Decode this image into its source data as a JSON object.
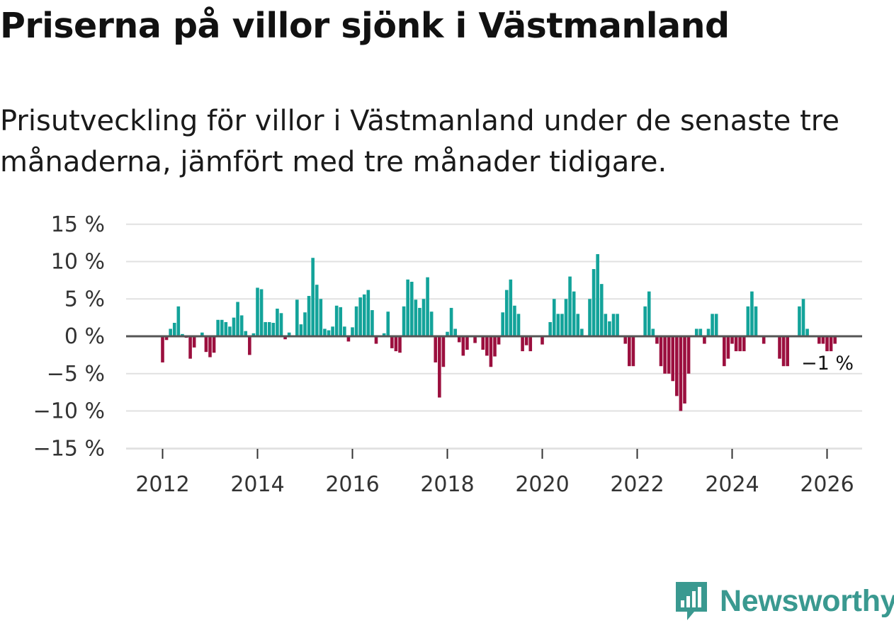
{
  "title": "Priserna på villor sjönk i Västmanland",
  "subtitle": "Prisutveckling för villor i Västmanland under de senaste tre månaderna, jämfört med tre månader tidigare.",
  "brand": {
    "name": "Newsworthy"
  },
  "colors": {
    "positive": "#13a39a",
    "negative": "#9b0f3e",
    "grid": "#e1e1e1",
    "zero": "#555555",
    "brand": "#3a9990"
  },
  "chart_data": {
    "type": "bar",
    "title": "Priserna på villor sjönk i Västmanland",
    "xlabel": "",
    "ylabel": "",
    "ylim": [
      -15,
      15
    ],
    "y_ticks": [
      15,
      10,
      5,
      0,
      -5,
      -10,
      -15
    ],
    "y_tick_labels": [
      "15 %",
      "10 %",
      "5 %",
      "0 %",
      "−5 %",
      "−10 %",
      "−15 %"
    ],
    "x_ticks": [
      2012,
      2014,
      2016,
      2018,
      2020,
      2022,
      2024,
      2026
    ],
    "x_tick_labels": [
      "2012",
      "2014",
      "2016",
      "2018",
      "2020",
      "2022",
      "2024",
      "2026"
    ],
    "start": "2012-01",
    "unit": "%",
    "values": [
      -3.5,
      -0.5,
      1.0,
      1.8,
      4.0,
      0.3,
      -0.2,
      -3.0,
      -1.5,
      0.0,
      0.5,
      -2.1,
      -2.8,
      -2.2,
      2.2,
      2.2,
      1.9,
      1.3,
      2.5,
      4.6,
      2.8,
      0.7,
      -2.5,
      0.4,
      6.5,
      6.3,
      1.9,
      1.9,
      1.8,
      3.7,
      3.1,
      -0.4,
      0.5,
      0.0,
      4.9,
      1.6,
      3.2,
      5.4,
      10.5,
      6.9,
      5.0,
      1.0,
      0.8,
      1.3,
      4.1,
      3.9,
      1.3,
      -0.7,
      1.2,
      4.0,
      5.2,
      5.6,
      6.2,
      3.5,
      -1.0,
      0.0,
      0.4,
      3.3,
      -1.6,
      -2.0,
      -2.2,
      4.0,
      7.6,
      7.3,
      4.9,
      3.8,
      5.0,
      7.9,
      3.3,
      -3.5,
      -8.2,
      -4.1,
      0.6,
      3.8,
      1.0,
      -0.8,
      -2.6,
      -1.8,
      0.0,
      -0.9,
      0.0,
      -1.8,
      -2.6,
      -4.1,
      -2.7,
      -1.1,
      3.2,
      6.2,
      7.6,
      4.1,
      3.0,
      -2.0,
      -1.2,
      -2.0,
      0.0,
      0.0,
      -1.1,
      0.0,
      1.9,
      5.0,
      3.0,
      3.0,
      5.0,
      8.0,
      6.0,
      3.0,
      1.0,
      0.0,
      5.0,
      9.0,
      11.0,
      7.0,
      3.0,
      2.0,
      3.0,
      3.0,
      0.0,
      -1.0,
      -4.0,
      -4.0,
      0.0,
      0.0,
      4.0,
      6.0,
      1.0,
      -1.0,
      -4.0,
      -5.0,
      -5.0,
      -6.0,
      -8.0,
      -10.0,
      -9.0,
      -5.0,
      0.0,
      1.0,
      1.0,
      -1.0,
      1.0,
      3.0,
      3.0,
      0.0,
      -4.0,
      -3.0,
      -1.0,
      -2.0,
      -2.0,
      -2.0,
      4.0,
      6.0,
      4.0,
      0.0,
      -1.0,
      0.0,
      0.0,
      0.0,
      -3.0,
      -4.0,
      -4.0,
      0.0,
      0.0,
      4.0,
      5.0,
      1.0,
      0.0,
      0.0,
      -1.0,
      -1.0,
      -2.0,
      -2.0,
      -1.0
    ],
    "annotation": "−1 %"
  }
}
